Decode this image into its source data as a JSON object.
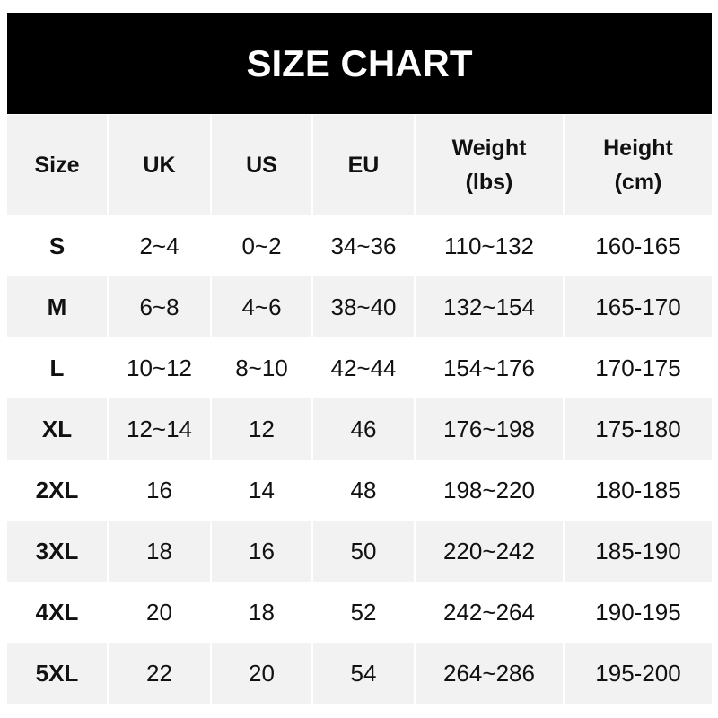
{
  "title": "SIZE CHART",
  "chart_data": {
    "type": "table",
    "title": "SIZE CHART",
    "columns": [
      "Size",
      "UK",
      "US",
      "EU",
      "Weight (lbs)",
      "Height (cm)"
    ],
    "header": [
      {
        "line1": "Size",
        "line2": ""
      },
      {
        "line1": "UK",
        "line2": ""
      },
      {
        "line1": "US",
        "line2": ""
      },
      {
        "line1": "EU",
        "line2": ""
      },
      {
        "line1": "Weight",
        "line2": "(lbs)"
      },
      {
        "line1": "Height",
        "line2": "(cm)"
      }
    ],
    "rows": [
      [
        "S",
        "2~4",
        "0~2",
        "34~36",
        "110~132",
        "160-165"
      ],
      [
        "M",
        "6~8",
        "4~6",
        "38~40",
        "132~154",
        "165-170"
      ],
      [
        "L",
        "10~12",
        "8~10",
        "42~44",
        "154~176",
        "170-175"
      ],
      [
        "XL",
        "12~14",
        "12",
        "46",
        "176~198",
        "175-180"
      ],
      [
        "2XL",
        "16",
        "14",
        "48",
        "198~220",
        "180-185"
      ],
      [
        "3XL",
        "18",
        "16",
        "50",
        "220~242",
        "185-190"
      ],
      [
        "4XL",
        "20",
        "18",
        "52",
        "242~264",
        "190-195"
      ],
      [
        "5XL",
        "22",
        "20",
        "54",
        "264~286",
        "195-200"
      ]
    ]
  },
  "colors": {
    "title_bg": "#000000",
    "title_text": "#ffffff",
    "shaded_row": "#f2f2f2",
    "plain_row": "#ffffff"
  }
}
